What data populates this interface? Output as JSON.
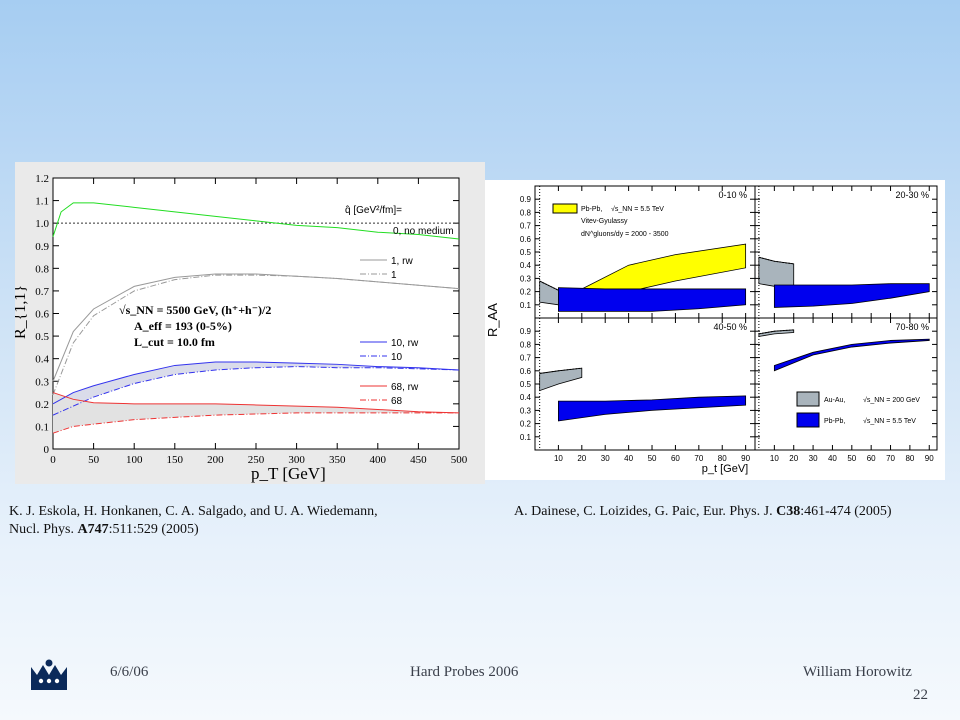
{
  "slide": {
    "date": "6/6/06",
    "event": "Hard Probes 2006",
    "author": "William Horowitz",
    "page": "22"
  },
  "citations": {
    "left_line1": "K. J. Eskola, H. Honkanen, C. A. Salgado, and U. A. Wiedemann,",
    "left_line2_pre": "Nucl. Phys. ",
    "left_line2_bold": "A747",
    "left_line2_post": ":511:529 (2005)",
    "right_pre": "A. Dainese, C. Loizides, G. Paic, Eur. Phys. J. ",
    "right_bold": "C38",
    "right_post": ":461-474 (2005)"
  },
  "colors": {
    "green": "#22dd22",
    "gray": "#999999",
    "blue": "#3333ee",
    "red": "#ee3333",
    "yellow": "#ffff00",
    "band_blue": "#0000ee",
    "band_gray": "#a9b4bc",
    "band_light": "#e2e2e2"
  },
  "chart_data": [
    {
      "type": "line",
      "xlabel": "p_T [GeV]",
      "ylabel": "R_{1,1}",
      "xlim": [
        0,
        500
      ],
      "ylim": [
        0,
        1.2
      ],
      "x_ticks": [
        "0",
        "50",
        "100",
        "150",
        "200",
        "250",
        "300",
        "350",
        "400",
        "450",
        "500"
      ],
      "y_ticks": [
        "0",
        "0.1",
        "0.2",
        "0.3",
        "0.4",
        "0.5",
        "0.6",
        "0.7",
        "0.8",
        "0.9",
        "1.0",
        "1.1",
        "1.2"
      ],
      "legend_title": "q̂ [GeV²/fm]=",
      "annotations": {
        "sqrt": "√s_NN = 5500 GeV, (h⁺+h⁻)/2",
        "aeff": "A_eff = 193 (0-5%)",
        "lcut": "L_cut = 10.0 fm"
      },
      "series": [
        {
          "name": "0, no medium",
          "style": "solid",
          "color": "green",
          "x": [
            0,
            10,
            25,
            50,
            100,
            150,
            200,
            250,
            300,
            350,
            400,
            450,
            500
          ],
          "y": [
            0.94,
            1.05,
            1.09,
            1.09,
            1.07,
            1.05,
            1.03,
            1.01,
            0.99,
            0.98,
            0.96,
            0.95,
            0.93
          ]
        },
        {
          "name": "1, rw",
          "style": "solid",
          "color": "gray",
          "x": [
            0,
            25,
            50,
            100,
            150,
            200,
            250,
            300,
            350,
            400,
            450,
            500
          ],
          "y": [
            0.3,
            0.52,
            0.62,
            0.72,
            0.76,
            0.775,
            0.775,
            0.765,
            0.755,
            0.74,
            0.725,
            0.71
          ]
        },
        {
          "name": "1",
          "style": "dashdot",
          "color": "gray",
          "x": [
            0,
            25,
            50,
            100,
            150,
            200,
            250,
            300,
            350,
            400,
            450,
            500
          ],
          "y": [
            0.24,
            0.47,
            0.59,
            0.7,
            0.75,
            0.77,
            0.77,
            0.765,
            0.755,
            0.74,
            0.725,
            0.71
          ]
        },
        {
          "name": "10, rw",
          "style": "solid",
          "color": "blue",
          "x": [
            0,
            25,
            50,
            100,
            150,
            200,
            250,
            300,
            350,
            400,
            450,
            500
          ],
          "y": [
            0.2,
            0.25,
            0.28,
            0.33,
            0.37,
            0.385,
            0.385,
            0.38,
            0.375,
            0.365,
            0.36,
            0.35
          ]
        },
        {
          "name": "10",
          "style": "dashdot",
          "color": "blue",
          "x": [
            0,
            25,
            50,
            100,
            150,
            200,
            250,
            300,
            350,
            400,
            450,
            500
          ],
          "y": [
            0.15,
            0.19,
            0.23,
            0.29,
            0.33,
            0.35,
            0.36,
            0.365,
            0.36,
            0.36,
            0.355,
            0.35
          ]
        },
        {
          "name": "68, rw",
          "style": "solid",
          "color": "red",
          "x": [
            0,
            25,
            50,
            100,
            150,
            200,
            250,
            300,
            350,
            400,
            450,
            500
          ],
          "y": [
            0.25,
            0.22,
            0.205,
            0.2,
            0.2,
            0.2,
            0.195,
            0.19,
            0.185,
            0.175,
            0.165,
            0.16
          ]
        },
        {
          "name": "68",
          "style": "dashdot",
          "color": "red",
          "x": [
            0,
            25,
            50,
            100,
            150,
            200,
            250,
            300,
            350,
            400,
            450,
            500
          ],
          "y": [
            0.07,
            0.1,
            0.11,
            0.13,
            0.14,
            0.15,
            0.155,
            0.16,
            0.16,
            0.16,
            0.16,
            0.16
          ]
        }
      ],
      "reference_line": 1.0
    },
    {
      "type": "area",
      "xlabel": "p_t [GeV]",
      "ylabel": "R_AA",
      "xlim": [
        0,
        94
      ],
      "ylim": [
        0,
        1
      ],
      "x_ticks": [
        "10",
        "20",
        "30",
        "40",
        "50",
        "60",
        "70",
        "80",
        "90"
      ],
      "y_ticks": [
        "0.1",
        "0.2",
        "0.3",
        "0.4",
        "0.5",
        "0.6",
        "0.7",
        "0.8",
        "0.9"
      ],
      "legend": {
        "yellow": [
          "Pb-Pb,",
          "√s_NN = 5.5 TeV",
          "Vitev-Gyulassy",
          "dN^gluons/dy = 2000 - 3500"
        ],
        "auau": [
          "Au-Au,",
          "√s_NN = 200 GeV"
        ],
        "pbpb": [
          "Pb-Pb,",
          "√s_NN = 5.5 TeV"
        ]
      },
      "panels": [
        {
          "label": "0-10 %",
          "bands": [
            {
              "color": "band_gray",
              "x": [
                2,
                10,
                20
              ],
              "upper": [
                0.28,
                0.21,
                0.18
              ],
              "lower": [
                0.12,
                0.1,
                0.08
              ]
            },
            {
              "color": "yellow",
              "x": [
                20,
                40,
                60,
                90
              ],
              "upper": [
                0.22,
                0.4,
                0.48,
                0.56
              ],
              "lower": [
                0.1,
                0.2,
                0.28,
                0.38
              ]
            },
            {
              "color": "band_blue",
              "x": [
                10,
                30,
                50,
                70,
                90
              ],
              "upper": [
                0.23,
                0.22,
                0.22,
                0.22,
                0.22
              ],
              "lower": [
                0.05,
                0.05,
                0.05,
                0.07,
                0.1
              ]
            }
          ]
        },
        {
          "label": "20-30 %",
          "bands": [
            {
              "color": "band_gray",
              "x": [
                2,
                10,
                20
              ],
              "upper": [
                0.46,
                0.43,
                0.41
              ],
              "lower": [
                0.26,
                0.24,
                0.2
              ]
            },
            {
              "color": "band_blue",
              "x": [
                10,
                30,
                50,
                70,
                90
              ],
              "upper": [
                0.25,
                0.25,
                0.25,
                0.26,
                0.26
              ],
              "lower": [
                0.08,
                0.09,
                0.11,
                0.15,
                0.2
              ]
            }
          ]
        },
        {
          "label": "40-50 %",
          "bands": [
            {
              "color": "band_gray",
              "x": [
                2,
                10,
                20
              ],
              "upper": [
                0.58,
                0.6,
                0.62
              ],
              "lower": [
                0.45,
                0.5,
                0.55
              ]
            },
            {
              "color": "band_blue",
              "x": [
                10,
                30,
                50,
                70,
                90
              ],
              "upper": [
                0.37,
                0.37,
                0.38,
                0.4,
                0.41
              ],
              "lower": [
                0.22,
                0.27,
                0.3,
                0.32,
                0.34
              ]
            }
          ]
        },
        {
          "label": "70-80 %",
          "bands": [
            {
              "color": "band_gray",
              "x": [
                2,
                10,
                20
              ],
              "upper": [
                0.88,
                0.9,
                0.91
              ],
              "lower": [
                0.86,
                0.88,
                0.89
              ]
            },
            {
              "color": "band_blue",
              "x": [
                10,
                30,
                50,
                70,
                90
              ],
              "upper": [
                0.64,
                0.74,
                0.8,
                0.83,
                0.84
              ],
              "lower": [
                0.6,
                0.72,
                0.78,
                0.81,
                0.83
              ]
            }
          ]
        }
      ]
    }
  ]
}
